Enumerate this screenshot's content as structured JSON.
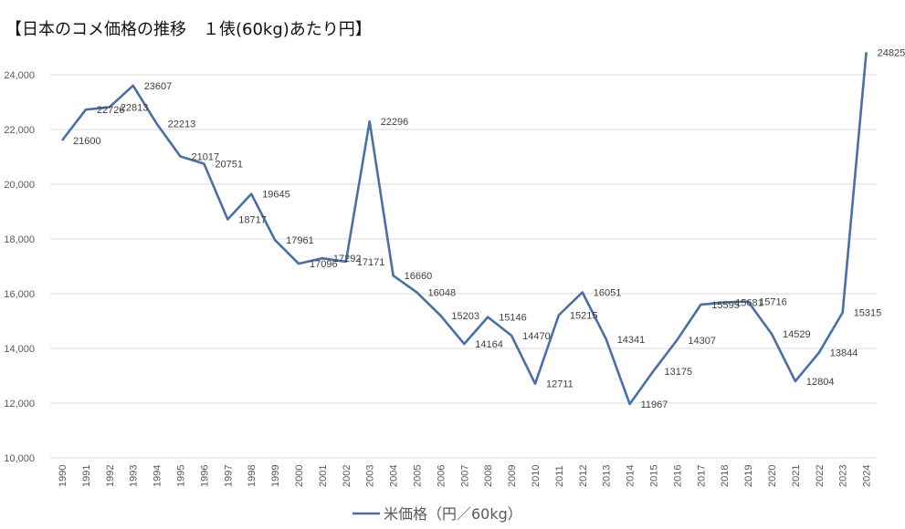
{
  "chart_data": {
    "type": "line",
    "title": "【日本のコメ価格の推移　１俵(60kg)あたり円】",
    "xlabel": "",
    "ylabel": "",
    "ylim": [
      10000,
      25000
    ],
    "yticks": [
      10000,
      12000,
      14000,
      16000,
      18000,
      20000,
      22000,
      24000
    ],
    "ytick_labels": [
      "10,000",
      "12,000",
      "14,000",
      "16,000",
      "18,000",
      "20,000",
      "22,000",
      "24,000"
    ],
    "grid": true,
    "legend_position": "bottom",
    "categories": [
      "1990",
      "1991",
      "1992",
      "1993",
      "1994",
      "1995",
      "1996",
      "1997",
      "1998",
      "1999",
      "2000",
      "2001",
      "2002",
      "2003",
      "2004",
      "2005",
      "2006",
      "2007",
      "2008",
      "2009",
      "2010",
      "2011",
      "2012",
      "2013",
      "2014",
      "2015",
      "2016",
      "2017",
      "2018",
      "2019",
      "2020",
      "2021",
      "2022",
      "2023",
      "2024"
    ],
    "series": [
      {
        "name": "米価格（円／60kg）",
        "color": "#4a6fa5",
        "values": [
          21600,
          22726,
          22813,
          23607,
          22213,
          21017,
          20751,
          18717,
          19645,
          17961,
          17096,
          17292,
          17171,
          22296,
          16660,
          16048,
          15203,
          14164,
          15146,
          14470,
          12711,
          15215,
          16051,
          14341,
          11967,
          13175,
          14307,
          15595,
          15681,
          15716,
          14529,
          12804,
          13844,
          15315,
          24825
        ]
      }
    ]
  }
}
